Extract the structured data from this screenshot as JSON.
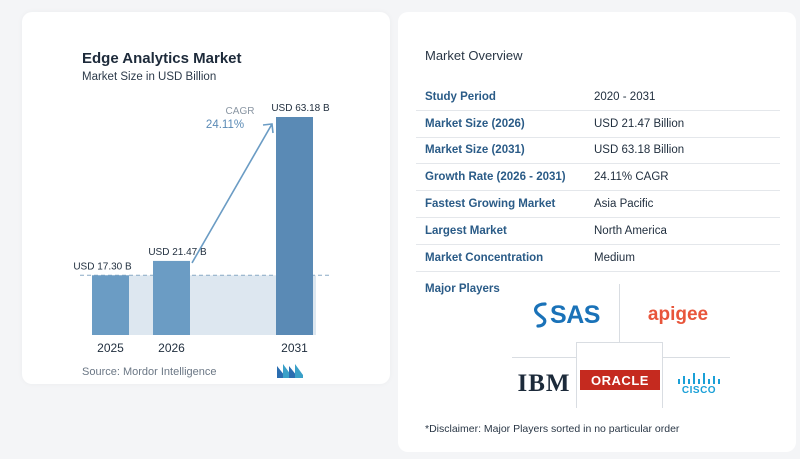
{
  "chart": {
    "title": "Edge Analytics Market",
    "subtitle": "Market Size in USD Billion",
    "source": "Source:  Mordor Intelligence",
    "cagr_label": "CAGR",
    "cagr_value": "24.11%"
  },
  "chart_data": {
    "type": "bar",
    "title": "Edge Analytics Market",
    "subtitle": "Market Size in USD Billion",
    "categories": [
      "2025",
      "2026",
      "2031"
    ],
    "values": [
      17.3,
      21.47,
      63.18
    ],
    "value_labels": [
      "USD 17.30 B",
      "USD 21.47 B",
      "USD 63.18 B"
    ],
    "unit": "USD Billion",
    "ylim": [
      0,
      70
    ],
    "grid": false,
    "colors": {
      "bar": "#6b9cc4",
      "bar_dark": "#5a8ab5",
      "band": "#dde7f0",
      "arrow": "#6b9cc4"
    }
  },
  "overview": {
    "title": "Market Overview",
    "rows": [
      {
        "key": "Study Period",
        "value": "2020 - 2031"
      },
      {
        "key": "Market Size (2026)",
        "value": "USD 21.47 Billion"
      },
      {
        "key": "Market Size (2031)",
        "value": "USD 63.18 Billion"
      },
      {
        "key": "Growth Rate (2026 - 2031)",
        "value": "24.11% CAGR"
      },
      {
        "key": "Fastest Growing Market",
        "value": "Asia Pacific"
      },
      {
        "key": "Largest Market",
        "value": "North America"
      },
      {
        "key": "Market Concentration",
        "value": "Medium"
      }
    ]
  },
  "players": {
    "title": "Major Players",
    "logos": {
      "sas": "SAS",
      "apigee": "apigee",
      "ibm": "IBM",
      "oracle": "ORACLE",
      "cisco": "CISCO"
    }
  },
  "disclaimer": "*Disclaimer: Major Players sorted in no particular order"
}
